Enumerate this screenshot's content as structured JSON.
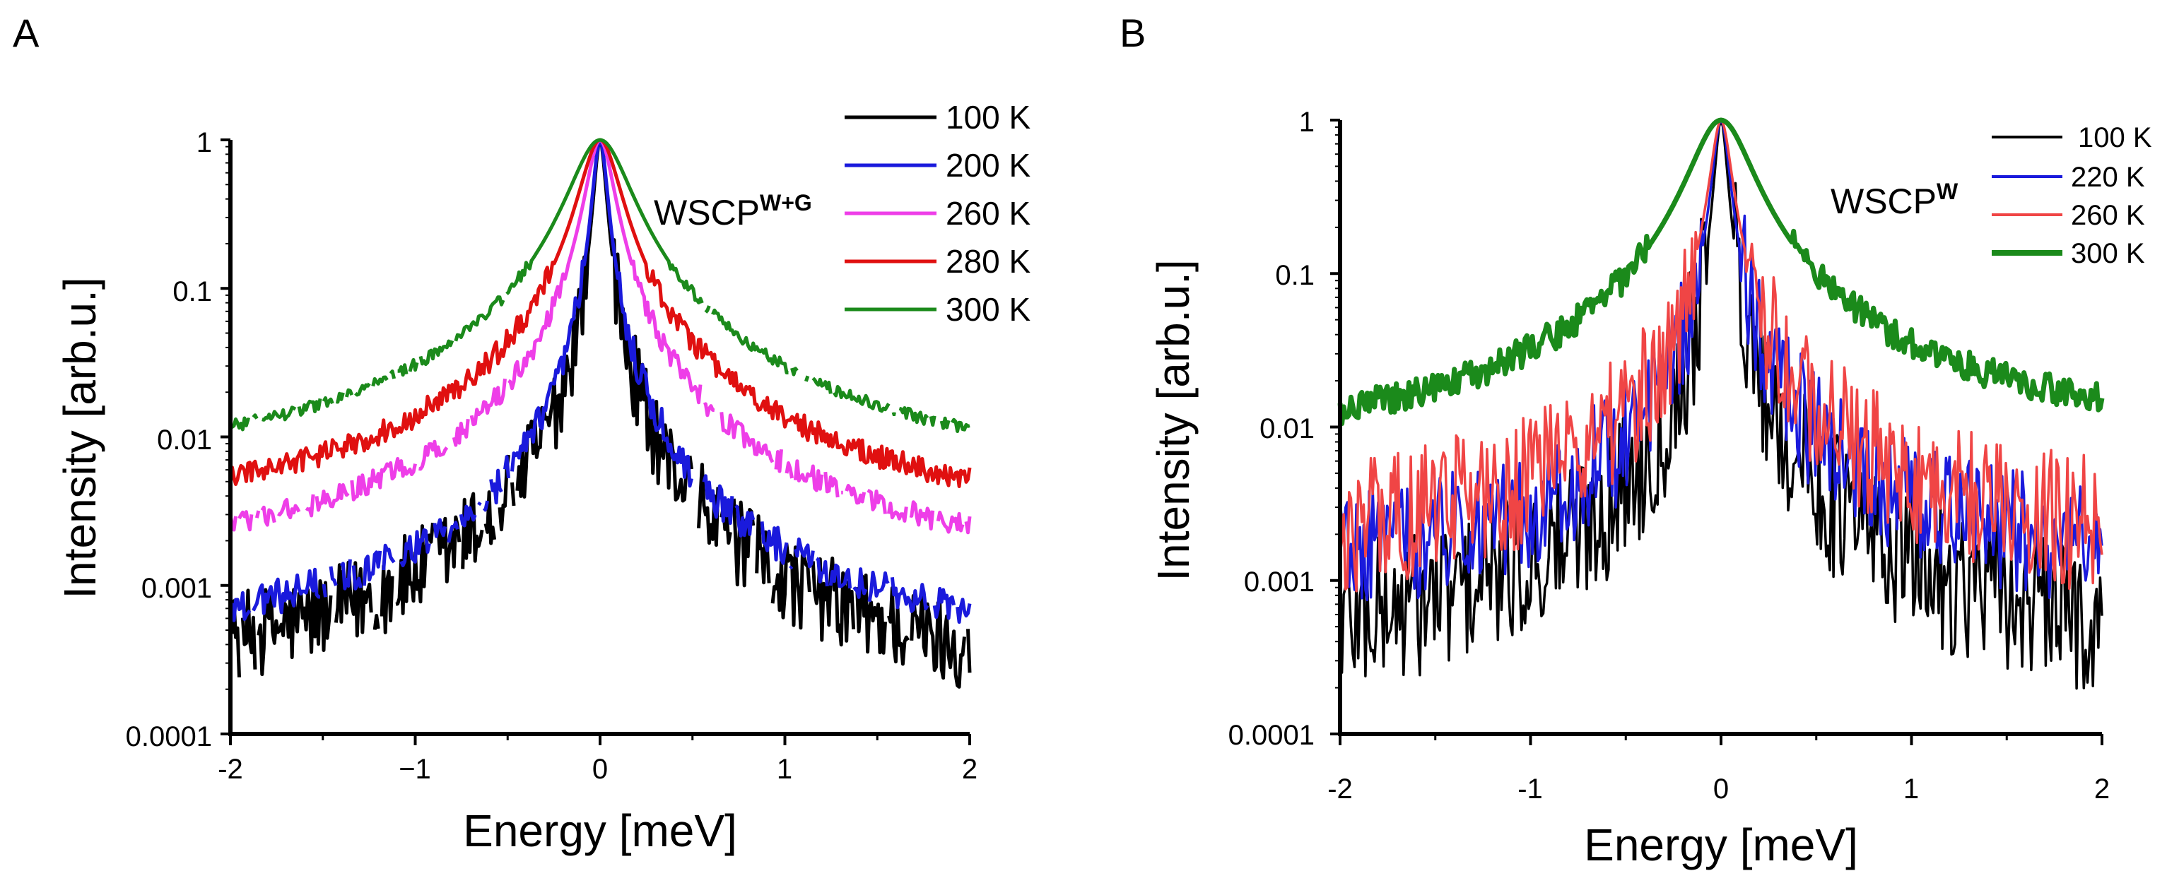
{
  "figure": {
    "panels": [
      "A",
      "B"
    ]
  },
  "chart_data": [
    {
      "panel": "A",
      "type": "line",
      "title": "",
      "sample_label": {
        "main": "WSCP",
        "sup": "W+G"
      },
      "xlabel": "Energy [meV]",
      "ylabel": "Intensity [arb.u.]",
      "x_scale": "linear",
      "y_scale": "log",
      "xlim": [
        -2,
        2
      ],
      "ylim": [
        0.0001,
        1
      ],
      "x_ticks": [
        -2,
        -1,
        0,
        1,
        2
      ],
      "x_tick_labels": [
        "-2",
        "−1",
        "0",
        "1",
        "2"
      ],
      "y_ticks": [
        1,
        0.1,
        0.01,
        0.001,
        0.0001
      ],
      "y_tick_labels": [
        "1",
        "0.1",
        "0.01",
        "0.001",
        "0.0001"
      ],
      "legend_position": "top-right",
      "series": [
        {
          "name": "100 K",
          "color": "#000000",
          "peak_hw": 0.03,
          "left_bg": 0.0002,
          "right_bg": 0.00016,
          "noise": 0.3
        },
        {
          "name": "200 K",
          "color": "#1a1adc",
          "peak_hw": 0.035,
          "left_bg": 0.0004,
          "right_bg": 0.00035,
          "noise": 0.12
        },
        {
          "name": "260 K",
          "color": "#ee3ee8",
          "peak_hw": 0.07,
          "left_bg": 0.0013,
          "right_bg": 0.0012,
          "noise": 0.08
        },
        {
          "name": "280 K",
          "color": "#e01010",
          "peak_hw": 0.1,
          "left_bg": 0.0027,
          "right_bg": 0.0025,
          "noise": 0.08
        },
        {
          "name": "300 K",
          "color": "#1b8a1b",
          "peak_hw": 0.15,
          "left_bg": 0.0058,
          "right_bg": 0.0054,
          "noise": 0.04
        }
      ]
    },
    {
      "panel": "B",
      "type": "line",
      "title": "",
      "sample_label": {
        "main": "WSCP",
        "sup": "W"
      },
      "xlabel": "Energy [meV]",
      "ylabel": "Intensity [arb.u.]",
      "x_scale": "linear",
      "y_scale": "log",
      "xlim": [
        -2,
        2
      ],
      "ylim": [
        0.0001,
        1
      ],
      "x_ticks": [
        -2,
        -1,
        0,
        1,
        2
      ],
      "x_tick_labels": [
        "-2",
        "-1",
        "0",
        "1",
        "2"
      ],
      "y_ticks": [
        1,
        0.1,
        0.01,
        0.001,
        0.0001
      ],
      "y_tick_labels": [
        "1",
        "0.1",
        "0.01",
        "0.001",
        "0.0001"
      ],
      "legend_position": "top-right",
      "series": [
        {
          "name": "100 K",
          "color": "#000000",
          "peak_hw": 0.03,
          "left_bg": 0.0003,
          "right_bg": 0.0003,
          "noise": 0.5
        },
        {
          "name": "220 K",
          "color": "#1a1adc",
          "peak_hw": 0.04,
          "left_bg": 0.001,
          "right_bg": 0.0012,
          "noise": 0.4
        },
        {
          "name": "260 K",
          "color": "#f04545",
          "peak_hw": 0.05,
          "left_bg": 0.0015,
          "right_bg": 0.0015,
          "noise": 0.45
        },
        {
          "name": "300 K",
          "color": "#1b8a1b",
          "peak_hw": 0.15,
          "left_bg": 0.007,
          "right_bg": 0.009,
          "noise": 0.1
        }
      ]
    }
  ]
}
